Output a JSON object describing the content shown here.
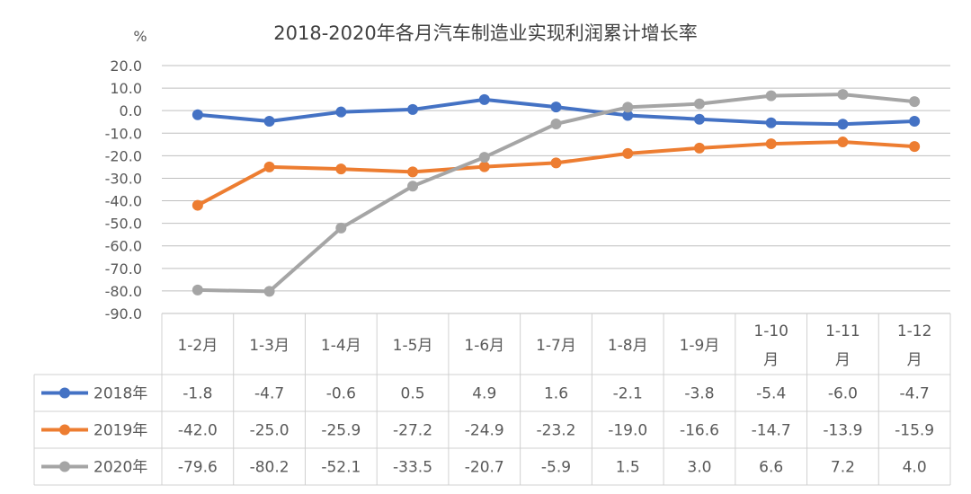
{
  "chart_data": {
    "type": "line",
    "title": "2018-2020年各月汽车制造业实现利润累计增长率",
    "ylabel": "%",
    "ylim": [
      -90,
      20
    ],
    "ytick_step": 10,
    "ytick_labels": [
      "20.0",
      "10.0",
      "0.0",
      "-10.0",
      "-20.0",
      "-30.0",
      "-40.0",
      "-50.0",
      "-60.0",
      "-70.0",
      "-80.0",
      "-90.0"
    ],
    "categories": [
      "1-2月",
      "1-3月",
      "1-4月",
      "1-5月",
      "1-6月",
      "1-7月",
      "1-8月",
      "1-9月",
      "1-10月",
      "1-11月",
      "1-12月"
    ],
    "grid": true,
    "legend": "table-bottom",
    "series": [
      {
        "name": "2018年",
        "color": "#4472C4",
        "values": [
          -1.8,
          -4.7,
          -0.6,
          0.5,
          4.9,
          1.6,
          -2.1,
          -3.8,
          -5.4,
          -6.0,
          -4.7
        ],
        "labels": [
          "-1.8",
          "-4.7",
          "-0.6",
          "0.5",
          "4.9",
          "1.6",
          "-2.1",
          "-3.8",
          "-5.4",
          "-6.0",
          "-4.7"
        ]
      },
      {
        "name": "2019年",
        "color": "#ED7D31",
        "values": [
          -42.0,
          -25.0,
          -25.9,
          -27.2,
          -24.9,
          -23.2,
          -19.0,
          -16.6,
          -14.7,
          -13.9,
          -15.9
        ],
        "labels": [
          "-42.0",
          "-25.0",
          "-25.9",
          "-27.2",
          "-24.9",
          "-23.2",
          "-19.0",
          "-16.6",
          "-14.7",
          "-13.9",
          "-15.9"
        ]
      },
      {
        "name": "2020年",
        "color": "#A5A5A5",
        "values": [
          -79.6,
          -80.2,
          -52.1,
          -33.5,
          -20.7,
          -5.9,
          1.5,
          3.0,
          6.6,
          7.2,
          4.0
        ],
        "labels": [
          "-79.6",
          "-80.2",
          "-52.1",
          "-33.5",
          "-20.7",
          "-5.9",
          "1.5",
          "3.0",
          "6.6",
          "7.2",
          "4.0"
        ]
      }
    ]
  }
}
